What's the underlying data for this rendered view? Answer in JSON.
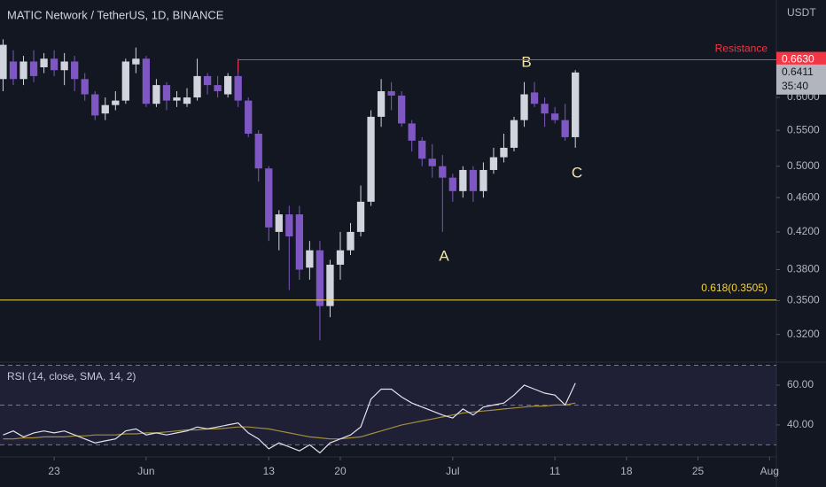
{
  "chart_data": [
    {
      "type": "candlestick",
      "title": "MATIC Network / TetherUS, 1D, BINANCE",
      "axis_unit": "USDT",
      "log_scale": true,
      "open": [
        0.63,
        0.66,
        0.63,
        0.66,
        0.65,
        0.665,
        0.645,
        0.66,
        0.63,
        0.605,
        0.575,
        0.588,
        0.595,
        0.655,
        0.665,
        0.59,
        0.62,
        0.595,
        0.59,
        0.6,
        0.635,
        0.62,
        0.605,
        0.635,
        0.595,
        0.545,
        0.497,
        0.42,
        0.44,
        0.44,
        0.382,
        0.4,
        0.345,
        0.385,
        0.4,
        0.42,
        0.455,
        0.57,
        0.61,
        0.603,
        0.56,
        0.535,
        0.51,
        0.5,
        0.485,
        0.468,
        0.495,
        0.468,
        0.495,
        0.512,
        0.525,
        0.565,
        0.608,
        0.59,
        0.575,
        0.565,
        0.54
      ],
      "high": [
        0.7,
        0.68,
        0.67,
        0.68,
        0.675,
        0.68,
        0.675,
        0.67,
        0.64,
        0.61,
        0.6,
        0.61,
        0.665,
        0.685,
        0.67,
        0.63,
        0.625,
        0.61,
        0.615,
        0.665,
        0.64,
        0.635,
        0.64,
        0.665,
        0.6,
        0.55,
        0.5,
        0.445,
        0.45,
        0.45,
        0.41,
        0.41,
        0.39,
        0.42,
        0.43,
        0.475,
        0.58,
        0.63,
        0.625,
        0.61,
        0.565,
        0.54,
        0.53,
        0.515,
        0.49,
        0.5,
        0.5,
        0.505,
        0.525,
        0.545,
        0.57,
        0.625,
        0.625,
        0.6,
        0.585,
        0.59,
        0.645
      ],
      "low": [
        0.61,
        0.62,
        0.62,
        0.625,
        0.64,
        0.635,
        0.62,
        0.61,
        0.595,
        0.565,
        0.565,
        0.58,
        0.59,
        0.64,
        0.585,
        0.585,
        0.58,
        0.585,
        0.585,
        0.595,
        0.605,
        0.6,
        0.6,
        0.585,
        0.54,
        0.48,
        0.41,
        0.4,
        0.36,
        0.37,
        0.37,
        0.315,
        0.335,
        0.37,
        0.395,
        0.415,
        0.45,
        0.555,
        0.58,
        0.555,
        0.52,
        0.5,
        0.485,
        0.42,
        0.455,
        0.46,
        0.455,
        0.46,
        0.49,
        0.505,
        0.52,
        0.555,
        0.585,
        0.555,
        0.56,
        0.535,
        0.525
      ],
      "close": [
        0.69,
        0.63,
        0.66,
        0.635,
        0.665,
        0.645,
        0.66,
        0.63,
        0.605,
        0.572,
        0.588,
        0.595,
        0.66,
        0.665,
        0.59,
        0.62,
        0.595,
        0.6,
        0.6,
        0.635,
        0.62,
        0.61,
        0.635,
        0.595,
        0.545,
        0.497,
        0.425,
        0.44,
        0.415,
        0.38,
        0.4,
        0.345,
        0.385,
        0.4,
        0.42,
        0.455,
        0.57,
        0.61,
        0.603,
        0.56,
        0.535,
        0.51,
        0.5,
        0.485,
        0.468,
        0.495,
        0.468,
        0.495,
        0.512,
        0.525,
        0.565,
        0.605,
        0.59,
        0.575,
        0.565,
        0.54,
        0.6411
      ],
      "up_color": "#d1d4dc",
      "down_color": "#7e57c2",
      "ylim": [
        0.298,
        0.777
      ],
      "yticks": [
        {
          "value": 0.32,
          "label": "0.3200"
        },
        {
          "value": 0.35,
          "label": "0.3500"
        },
        {
          "value": 0.38,
          "label": "0.3800"
        },
        {
          "value": 0.42,
          "label": "0.4200"
        },
        {
          "value": 0.46,
          "label": "0.4600"
        },
        {
          "value": 0.5,
          "label": "0.5000"
        },
        {
          "value": 0.55,
          "label": "0.5500"
        },
        {
          "value": 0.6,
          "label": "0.6000"
        }
      ],
      "xlim": [
        -0.3,
        75.67
      ],
      "xticks": [
        {
          "value": 5,
          "label": "23"
        },
        {
          "value": 14,
          "label": "Jun"
        },
        {
          "value": 26,
          "label": "13"
        },
        {
          "value": 33,
          "label": "20"
        },
        {
          "value": 44,
          "label": "Jul"
        },
        {
          "value": 54,
          "label": "11"
        },
        {
          "value": 61,
          "label": "18"
        },
        {
          "value": 68,
          "label": "25"
        },
        {
          "value": 75,
          "label": "Aug"
        }
      ],
      "resistance": {
        "label": "Resistance",
        "value": 0.663,
        "price_label": "0.6630",
        "color": "#f23645"
      },
      "fib_level": {
        "label": "0.618(0.3505)",
        "value": 0.3505,
        "color": "#f5d33f"
      },
      "countdown": "35:40",
      "annotations": [
        "A",
        "B",
        "C"
      ]
    },
    {
      "type": "line",
      "title": "RSI (14, close, SMA, 14, 2)",
      "series": [
        {
          "name": "RSI",
          "color": "#e0e3eb",
          "values": [
            35,
            37,
            34,
            36,
            37,
            36,
            37,
            35,
            33,
            31,
            32,
            33,
            37,
            38,
            35,
            36,
            35,
            36,
            37,
            39,
            38,
            39,
            40,
            41,
            36,
            33,
            28,
            31,
            29,
            27,
            30,
            26,
            31,
            33,
            35,
            39,
            53,
            58,
            58,
            54,
            51,
            49,
            47,
            45,
            43.5,
            48,
            45,
            49,
            50,
            51,
            55,
            60,
            58,
            56,
            55,
            50,
            61
          ]
        },
        {
          "name": "SMA",
          "color": "#a38f3c",
          "values": [
            33,
            33,
            33.5,
            33.5,
            34,
            34,
            34,
            34.5,
            34.5,
            35,
            35,
            35,
            35.5,
            35.5,
            36,
            36,
            36.5,
            37,
            37.5,
            37.5,
            38,
            38,
            38.5,
            39,
            39,
            38.5,
            38,
            37,
            36,
            35,
            34,
            33.5,
            33,
            33,
            33.5,
            34,
            35.5,
            37,
            38.5,
            40,
            41,
            42,
            43,
            44,
            45,
            46,
            46.5,
            47,
            47.5,
            48,
            48.5,
            49,
            49.5,
            49.5,
            50,
            50,
            51
          ]
        }
      ],
      "levels": [
        30,
        50,
        70
      ],
      "ylim": [
        24.4,
        71.1
      ],
      "yticks": [
        {
          "value": 40,
          "label": "40.00"
        },
        {
          "value": 60,
          "label": "60.00"
        }
      ]
    }
  ]
}
